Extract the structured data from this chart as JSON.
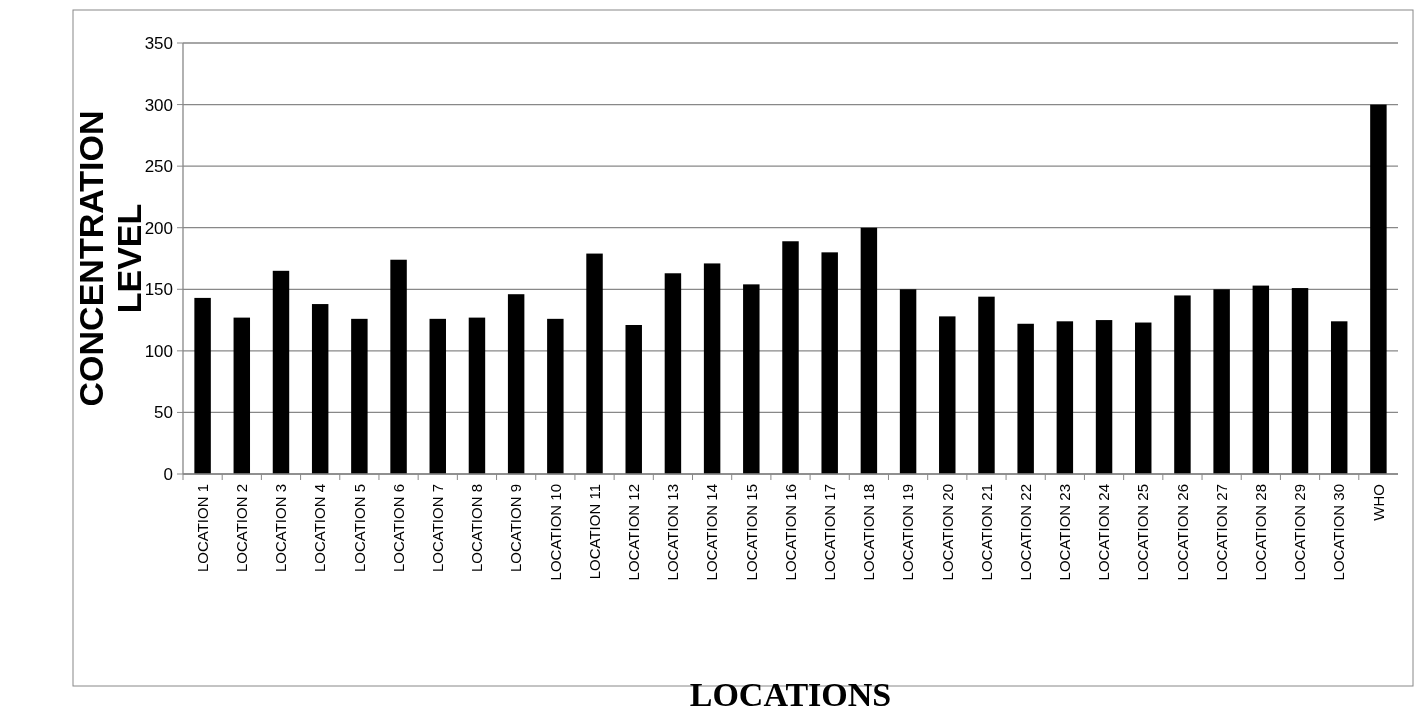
{
  "chart_data": {
    "type": "bar",
    "xlabel": "LOCATIONS",
    "ylabel": "CONCENTRATION LEVEL",
    "categories": [
      "LOCATION 1",
      "LOCATION 2",
      "LOCATION 3",
      "LOCATION 4",
      "LOCATION 5",
      "LOCATION 6",
      "LOCATION 7",
      "LOCATION 8",
      "LOCATION 9",
      "LOCATION 10",
      "LOCATION 11",
      "LOCATION 12",
      "LOCATION 13",
      "LOCATION 14",
      "LOCATION 15",
      "LOCATION 16",
      "LOCATION 17",
      "LOCATION 18",
      "LOCATION 19",
      "LOCATION 20",
      "LOCATION 21",
      "LOCATION 22",
      "LOCATION 23",
      "LOCATION 24",
      "LOCATION 25",
      "LOCATION 26",
      "LOCATION 27",
      "LOCATION 28",
      "LOCATION 29",
      "LOCATION 30",
      "WHO"
    ],
    "values": [
      143,
      127,
      165,
      138,
      126,
      174,
      126,
      127,
      146,
      126,
      179,
      121,
      163,
      171,
      154,
      189,
      180,
      200,
      150,
      128,
      144,
      122,
      124,
      125,
      123,
      145,
      150,
      153,
      151,
      124,
      300
    ],
    "color": "#000000",
    "ylim": [
      0,
      350
    ],
    "yticks": [
      0,
      50,
      100,
      150,
      200,
      250,
      300,
      350
    ],
    "grid": "y"
  }
}
